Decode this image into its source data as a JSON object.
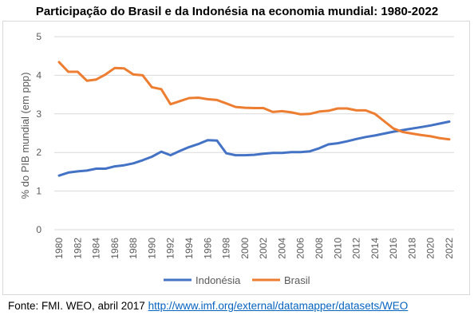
{
  "title": "Participação do Brasil e da Indonésia na economia mundial: 1980-2022",
  "source": {
    "text": "Fonte: FMI. WEO, abril 2017",
    "link": "http://www.imf.org/external/datamapper/datasets/WEO"
  },
  "colors": {
    "indonesia": "#4472c4",
    "brasil": "#ed7d31",
    "grid": "#d9d9d9",
    "axis_text": "#595959"
  },
  "chart_data": {
    "type": "line",
    "title": "Participação do Brasil e da Indonésia na economia mundial: 1980-2022",
    "xlabel": "",
    "ylabel": "% do PIB mundial (em ppp)",
    "ylim": [
      0,
      5
    ],
    "yticks": [
      "0",
      "1",
      "2",
      "3",
      "4",
      "5"
    ],
    "grid": true,
    "legend": "bottom",
    "x": [
      1980,
      1981,
      1982,
      1983,
      1984,
      1985,
      1986,
      1987,
      1988,
      1989,
      1990,
      1991,
      1992,
      1993,
      1994,
      1995,
      1996,
      1997,
      1998,
      1999,
      2000,
      2001,
      2002,
      2003,
      2004,
      2005,
      2006,
      2007,
      2008,
      2009,
      2010,
      2011,
      2012,
      2013,
      2014,
      2015,
      2016,
      2017,
      2018,
      2019,
      2020,
      2021,
      2022
    ],
    "xtick_labels": [
      "1980",
      "1982",
      "1984",
      "1986",
      "1988",
      "1990",
      "1992",
      "1994",
      "1996",
      "1998",
      "2000",
      "2002",
      "2004",
      "2006",
      "2008",
      "2010",
      "2012",
      "2014",
      "2016",
      "2018",
      "2020",
      "2022"
    ],
    "series": [
      {
        "name": "Indonésia",
        "color": "#4472c4",
        "values": [
          1.4,
          1.48,
          1.51,
          1.53,
          1.58,
          1.58,
          1.64,
          1.67,
          1.72,
          1.8,
          1.89,
          2.02,
          1.93,
          2.04,
          2.14,
          2.22,
          2.32,
          2.31,
          1.98,
          1.93,
          1.93,
          1.94,
          1.97,
          1.99,
          1.99,
          2.01,
          2.01,
          2.03,
          2.11,
          2.21,
          2.24,
          2.29,
          2.35,
          2.4,
          2.44,
          2.49,
          2.54,
          2.58,
          2.62,
          2.66,
          2.7,
          2.75,
          2.8
        ]
      },
      {
        "name": "Brasil",
        "color": "#ed7d31",
        "values": [
          4.34,
          4.09,
          4.09,
          3.86,
          3.89,
          4.02,
          4.19,
          4.18,
          4.02,
          4.0,
          3.69,
          3.64,
          3.25,
          3.33,
          3.41,
          3.42,
          3.38,
          3.36,
          3.27,
          3.18,
          3.16,
          3.15,
          3.15,
          3.05,
          3.07,
          3.04,
          2.99,
          3.0,
          3.06,
          3.08,
          3.14,
          3.14,
          3.09,
          3.09,
          3.0,
          2.81,
          2.62,
          2.53,
          2.49,
          2.45,
          2.42,
          2.37,
          2.34
        ]
      }
    ]
  }
}
